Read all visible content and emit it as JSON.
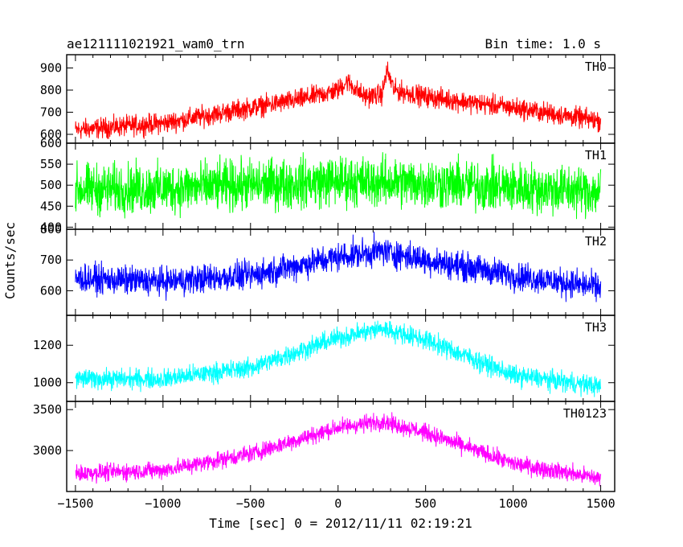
{
  "header": {
    "title": "ae121111021921_wam0_trn",
    "bin_time": "Bin time: 1.0 s"
  },
  "chart_data": {
    "type": "line",
    "ylabel": "Counts/sec",
    "xlabel": "Time [sec] 0 = 2012/11/11 02:19:21",
    "xlim": [
      -1550,
      1580
    ],
    "x_ticks": [
      -1500,
      -1000,
      -500,
      0,
      500,
      1000,
      1500
    ],
    "x_tick_labels": [
      "−1500",
      "−1000",
      "−500",
      "0",
      "500",
      "1000",
      "1500"
    ],
    "grid": false,
    "panels": [
      {
        "name": "TH0",
        "color": "#ff0000",
        "ylim": [
          560,
          960
        ],
        "y_ticks": [
          600,
          700,
          800,
          900
        ],
        "y_tick_labels": [
          "600",
          "700",
          "800",
          "900"
        ],
        "envelope_x": [
          -1500,
          -1000,
          -500,
          -200,
          0,
          50,
          150,
          250,
          280,
          320,
          500,
          1000,
          1500
        ],
        "envelope_mean": [
          620,
          650,
          720,
          760,
          800,
          840,
          770,
          780,
          890,
          800,
          770,
          720,
          660
        ],
        "noise_amp": 35
      },
      {
        "name": "TH1",
        "color": "#00ff00",
        "ylim": [
          395,
          600
        ],
        "y_ticks": [
          400,
          450,
          500,
          550,
          600
        ],
        "y_tick_labels": [
          "400",
          "450",
          "500",
          "550",
          "600"
        ],
        "envelope_x": [
          -1500,
          -1000,
          -500,
          0,
          500,
          1000,
          1500
        ],
        "envelope_mean": [
          490,
          492,
          500,
          510,
          505,
          495,
          485
        ],
        "noise_amp": 45
      },
      {
        "name": "TH2",
        "color": "#0000ff",
        "ylim": [
          520,
          800
        ],
        "y_ticks": [
          600,
          700,
          800
        ],
        "y_tick_labels": [
          "600",
          "700",
          "800"
        ],
        "envelope_x": [
          -1500,
          -1000,
          -500,
          0,
          250,
          500,
          1000,
          1500
        ],
        "envelope_mean": [
          640,
          630,
          650,
          710,
          730,
          700,
          650,
          610
        ],
        "noise_amp": 35
      },
      {
        "name": "TH3",
        "color": "#00ffff",
        "ylim": [
          900,
          1360
        ],
        "y_ticks": [
          1000,
          1200
        ],
        "y_tick_labels": [
          "1000",
          "1200"
        ],
        "envelope_x": [
          -1500,
          -1000,
          -500,
          0,
          250,
          500,
          1000,
          1500
        ],
        "envelope_mean": [
          1020,
          1020,
          1080,
          1240,
          1290,
          1230,
          1040,
          980
        ],
        "noise_amp": 40
      },
      {
        "name": "TH0123",
        "color": "#ff00ff",
        "ylim": [
          2500,
          3600
        ],
        "y_ticks": [
          3000,
          3500
        ],
        "y_tick_labels": [
          "3000",
          "3500"
        ],
        "envelope_x": [
          -1500,
          -1000,
          -500,
          0,
          250,
          500,
          1000,
          1500
        ],
        "envelope_mean": [
          2720,
          2760,
          2960,
          3280,
          3360,
          3220,
          2840,
          2660
        ],
        "noise_amp": 80
      }
    ]
  }
}
